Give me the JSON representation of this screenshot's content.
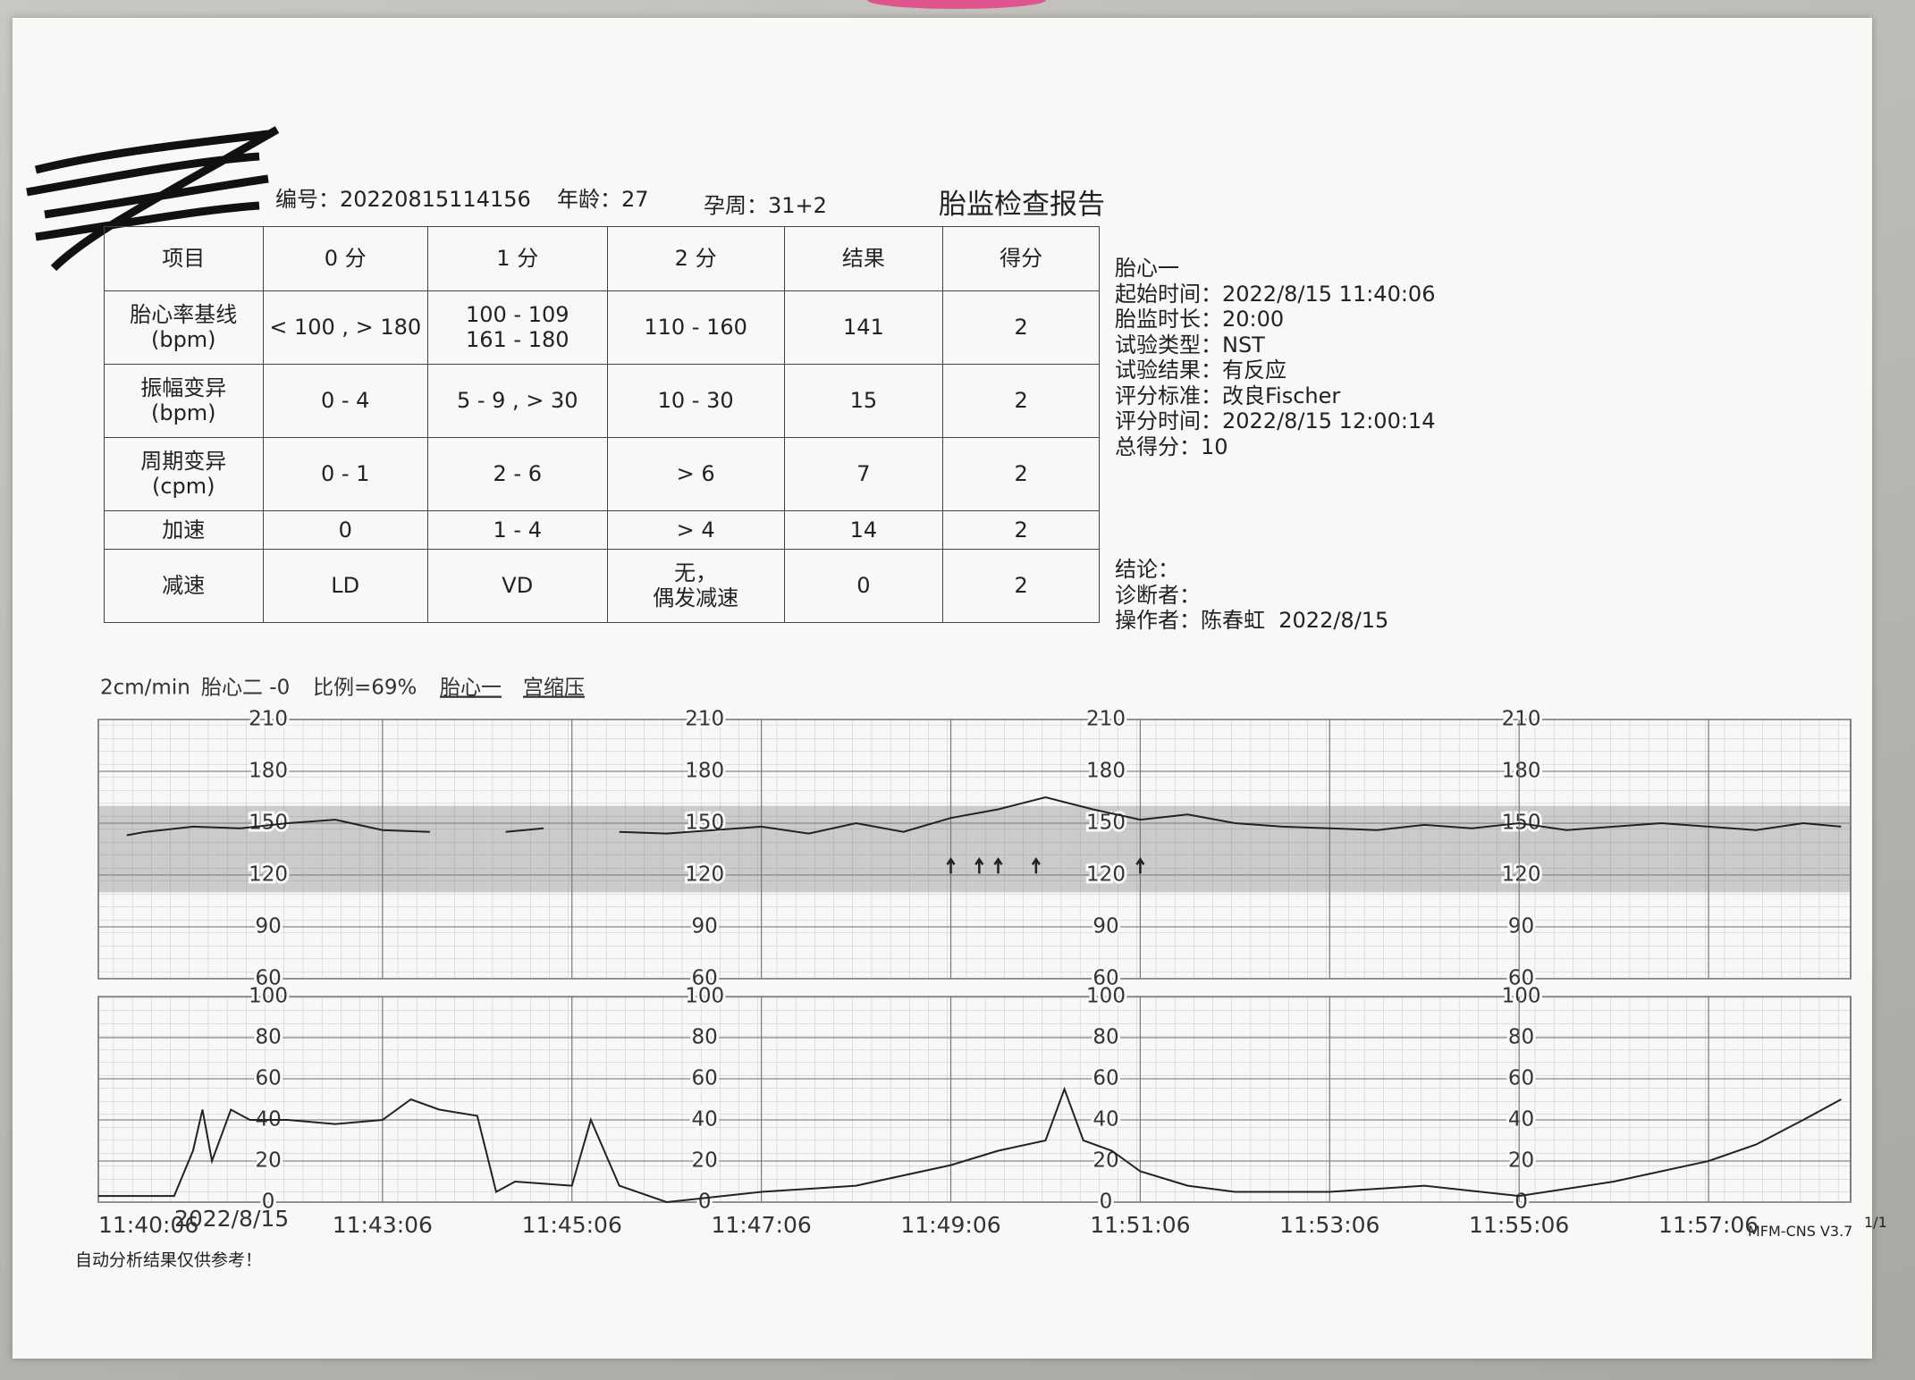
{
  "header": {
    "id": "编号：20220815114156",
    "age": "年龄：27",
    "gestation": "孕周：31+2",
    "title": "胎监检查报告"
  },
  "table": {
    "headers": [
      "项目",
      "0 分",
      "1 分",
      "2 分",
      "结果",
      "得分"
    ],
    "rows": [
      [
        "胎心率基线\n(bpm)",
        "< 100 , > 180",
        "100 - 109\n161 - 180",
        "110 - 160",
        141,
        2
      ],
      [
        "振幅变异\n(bpm)",
        "0 - 4",
        "5 - 9 , > 30",
        "10 - 30",
        15,
        2
      ],
      [
        "周期变异\n(cpm)",
        "0 - 1",
        "2 - 6",
        "> 6",
        7,
        2
      ],
      [
        "加速",
        0,
        "1 - 4",
        "> 4",
        14,
        2
      ],
      [
        "减速",
        "LD",
        "VD",
        "无，\n偶发减速",
        0,
        2
      ]
    ]
  },
  "info": [
    "胎心一",
    "起始时间：2022/8/15 11:40:06",
    "胎监时长：20:00",
    "试验类型：NST",
    "试验结果：有反应",
    "评分标准：改良Fischer",
    "评分时间：2022/8/15 12:00:14",
    "总得分：10"
  ],
  "conclusion": [
    "结论：",
    "诊断者：",
    "操作者：陈春虹  2022/8/15"
  ],
  "chart_labels": [
    "2cm/min",
    "胎心二 -0",
    "比例=69%",
    "胎心一",
    "宫缩压"
  ],
  "x_date": "2022/8/15",
  "footer": {
    "note": "自动分析结果仅供参考！",
    "version": "MFM-CNS V3.7",
    "page": "1/1"
  },
  "chart_data": [
    {
      "type": "line",
      "color": "#222222",
      "xlim": [
        0,
        18.5
      ],
      "xticks": [
        {
          "value": 0,
          "label": "11:40:06"
        },
        {
          "value": 3,
          "label": "11:43:06"
        },
        {
          "value": 5,
          "label": "11:45:06"
        },
        {
          "value": 7,
          "label": "11:47:06"
        },
        {
          "value": 9,
          "label": "11:49:06"
        },
        {
          "value": 11,
          "label": "11:51:06"
        },
        {
          "value": 13,
          "label": "11:53:06"
        },
        {
          "value": 15,
          "label": "11:55:06"
        },
        {
          "value": 17,
          "label": "11:57:06"
        }
      ],
      "ylim": [
        60,
        210
      ],
      "yticks": [
        60,
        90,
        120,
        150,
        180,
        210
      ],
      "band": [
        110,
        160
      ],
      "grid": true,
      "events": [
        9.0,
        9.3,
        9.5,
        9.9,
        11.0
      ],
      "x": [
        0.3,
        0.5,
        1,
        1.5,
        2,
        2.5,
        3,
        3.5,
        3.9,
        4.3,
        4.7,
        5.0,
        5.5,
        6,
        6.5,
        7,
        7.5,
        8,
        8.5,
        9,
        9.5,
        10,
        10.5,
        11,
        11.5,
        12,
        12.5,
        13,
        13.5,
        14,
        14.5,
        15,
        15.5,
        16,
        16.5,
        17,
        17.5,
        18,
        18.4
      ],
      "values": [
        143,
        145,
        148,
        147,
        150,
        152,
        146,
        145,
        null,
        145,
        147,
        null,
        145,
        144,
        146,
        148,
        144,
        150,
        145,
        153,
        158,
        165,
        158,
        152,
        155,
        150,
        148,
        147,
        146,
        149,
        147,
        150,
        146,
        148,
        150,
        148,
        146,
        150,
        148
      ]
    },
    {
      "type": "line",
      "color": "#222222",
      "xlim": [
        0,
        18.5
      ],
      "ylim": [
        0,
        100
      ],
      "yticks": [
        0,
        20,
        40,
        60,
        80,
        100
      ],
      "grid": true,
      "x": [
        0,
        0.8,
        1.0,
        1.1,
        1.2,
        1.4,
        1.6,
        2,
        2.5,
        3,
        3.3,
        3.6,
        4,
        4.2,
        4.4,
        5,
        5.2,
        5.5,
        6,
        7,
        8,
        9,
        9.5,
        10,
        10.2,
        10.4,
        10.7,
        11,
        11.5,
        12,
        13,
        14,
        15,
        16,
        17,
        17.5,
        18,
        18.4
      ],
      "values": [
        3,
        3,
        25,
        45,
        20,
        45,
        40,
        40,
        38,
        40,
        50,
        45,
        42,
        5,
        10,
        8,
        40,
        8,
        0,
        5,
        8,
        18,
        25,
        30,
        55,
        30,
        25,
        15,
        8,
        5,
        5,
        8,
        3,
        10,
        20,
        28,
        40,
        50
      ]
    }
  ]
}
